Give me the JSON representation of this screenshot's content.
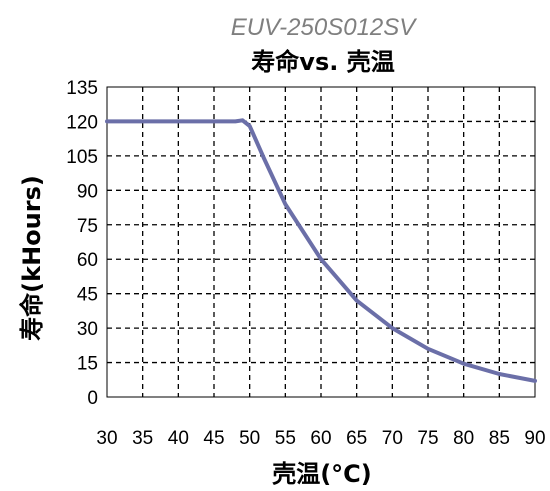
{
  "chart_data": {
    "type": "line",
    "title": "EUV-250S012SV",
    "subtitle": "寿命vs. 壳温",
    "xlabel": "壳温(°C)",
    "ylabel": "寿命(kHours)",
    "xlim": [
      30,
      90
    ],
    "ylim": [
      0,
      135
    ],
    "xticks": [
      30,
      35,
      40,
      45,
      50,
      55,
      60,
      65,
      70,
      75,
      80,
      85,
      90
    ],
    "yticks": [
      0,
      15,
      30,
      45,
      60,
      75,
      90,
      105,
      120,
      135
    ],
    "grid": true,
    "line_color": "#6b6fa8",
    "series": [
      {
        "x": [
          30,
          35,
          40,
          45,
          48,
          49,
          50,
          52,
          55,
          60,
          65,
          70,
          75,
          80,
          85,
          90
        ],
        "values": [
          120,
          120,
          120,
          120,
          120,
          120.5,
          118,
          104,
          84,
          60,
          42,
          30,
          21,
          14.5,
          10,
          7
        ]
      }
    ]
  }
}
